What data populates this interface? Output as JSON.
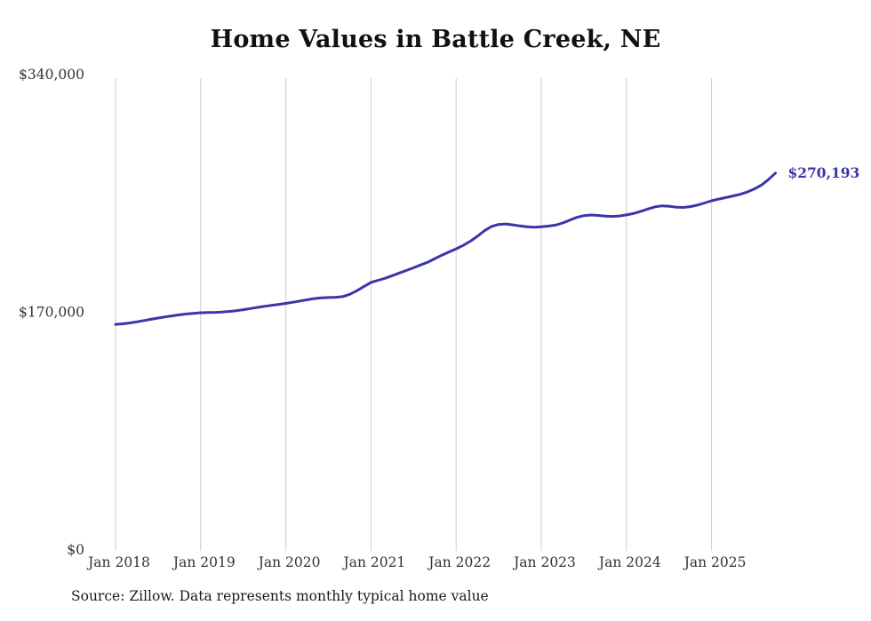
{
  "title": "Home Values in Battle Creek, NE",
  "end_label": "$270,193",
  "source": "Source: Zillow. Data represents monthly typical home value",
  "colors": {
    "line": "#3a35a8",
    "grid": "#cccccc",
    "tick_text": "#333333",
    "title_text": "#111111"
  },
  "chart_data": {
    "type": "line",
    "title": "Home Values in Battle Creek, NE",
    "xlabel": "",
    "ylabel": "",
    "x_start": "2018-01",
    "x_end": "2025-10",
    "frequency": "monthly",
    "ylim": [
      0,
      340000
    ],
    "grid": "vertical",
    "legend": "none",
    "y_ticks": [
      {
        "value": 0,
        "label": "$0"
      },
      {
        "value": 170000,
        "label": "$170,000"
      },
      {
        "value": 340000,
        "label": "$340,000"
      }
    ],
    "x_tick_labels": [
      "Jan 2018",
      "Jan 2019",
      "Jan 2020",
      "Jan 2021",
      "Jan 2022",
      "Jan 2023",
      "Jan 2024",
      "Jan 2025"
    ],
    "final_value": 270193,
    "final_value_label": "$270,193",
    "series": [
      {
        "name": "Typical home value",
        "values": [
          162000,
          162400,
          163000,
          163800,
          164700,
          165600,
          166500,
          167300,
          168100,
          168800,
          169400,
          169900,
          170300,
          170500,
          170600,
          170800,
          171200,
          171800,
          172500,
          173300,
          174100,
          174900,
          175600,
          176300,
          177000,
          177800,
          178700,
          179600,
          180400,
          180900,
          181200,
          181400,
          181800,
          183500,
          186000,
          189000,
          192000,
          193500,
          195000,
          196800,
          198700,
          200600,
          202500,
          204500,
          206500,
          209000,
          211500,
          213800,
          216000,
          218500,
          221500,
          225000,
          229000,
          232000,
          233500,
          233800,
          233200,
          232400,
          231800,
          231500,
          231800,
          232300,
          233000,
          234500,
          236500,
          238500,
          239800,
          240200,
          239900,
          239400,
          239200,
          239500,
          240300,
          241300,
          242800,
          244500,
          246000,
          246800,
          246500,
          245800,
          245600,
          246200,
          247300,
          248800,
          250400,
          251600,
          252700,
          253800,
          255000,
          256600,
          258800,
          261500,
          265500,
          270193
        ]
      }
    ]
  }
}
